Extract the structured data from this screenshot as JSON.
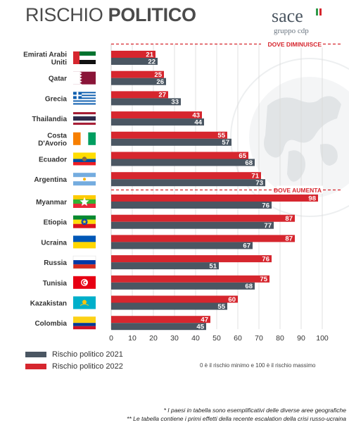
{
  "title_light": "RISCHIO ",
  "title_bold": "POLITICO",
  "logo": {
    "brand": "sace",
    "sub": "gruppo cdp",
    "flag_colors": [
      "#2e9a48",
      "#ffffff",
      "#d6262e"
    ]
  },
  "colors": {
    "y2021": "#4a5662",
    "y2022": "#d6262e",
    "section": "#d6262e",
    "grid": "#d9d9d9"
  },
  "legend": {
    "y2021": "Rischio politico 2021",
    "y2022": "Rischio politico 2022"
  },
  "note": "0 è il rischio minimo e 100 è il rischio massimo",
  "footnotes": [
    "* I paesi in tabella sono esemplificativi delle diverse aree geografiche",
    "** Le tabella contiene i primi effetti della recente escalation della crisi russo-ucraina"
  ],
  "chart_data": {
    "type": "bar",
    "orientation": "horizontal",
    "xlim": [
      0,
      100
    ],
    "x_ticks": [
      "0",
      "10",
      "20",
      "30",
      "40",
      "50",
      "60",
      "70",
      "80",
      "90",
      "100"
    ],
    "sections": [
      "DOVE DIMINUISCE",
      "DOVE AUMENTA"
    ],
    "categories": [
      "Emirati Arabi Uniti",
      "Qatar",
      "Grecia",
      "Thailandia",
      "Costa D'Avorio",
      "Ecuador",
      "Argentina",
      "Myanmar",
      "Etiopia",
      "Ucraina",
      "Russia",
      "Tunisia",
      "Kazakistan",
      "Colombia"
    ],
    "category_section": [
      0,
      0,
      0,
      0,
      0,
      0,
      0,
      1,
      1,
      1,
      1,
      1,
      1,
      1
    ],
    "flag_icons": [
      "uae-flag-icon",
      "qatar-flag-icon",
      "greece-flag-icon",
      "thailand-flag-icon",
      "cote-divoire-flag-icon",
      "ecuador-flag-icon",
      "argentina-flag-icon",
      "myanmar-flag-icon",
      "ethiopia-flag-icon",
      "ukraine-flag-icon",
      "russia-flag-icon",
      "tunisia-flag-icon",
      "kazakhstan-flag-icon",
      "colombia-flag-icon"
    ],
    "series": [
      {
        "name": "Rischio politico 2022",
        "values": [
          21,
          25,
          27,
          43,
          55,
          65,
          71,
          98,
          87,
          87,
          76,
          75,
          60,
          47
        ]
      },
      {
        "name": "Rischio politico 2021",
        "values": [
          22,
          26,
          33,
          44,
          57,
          68,
          73,
          76,
          77,
          67,
          51,
          68,
          55,
          45
        ]
      }
    ]
  }
}
